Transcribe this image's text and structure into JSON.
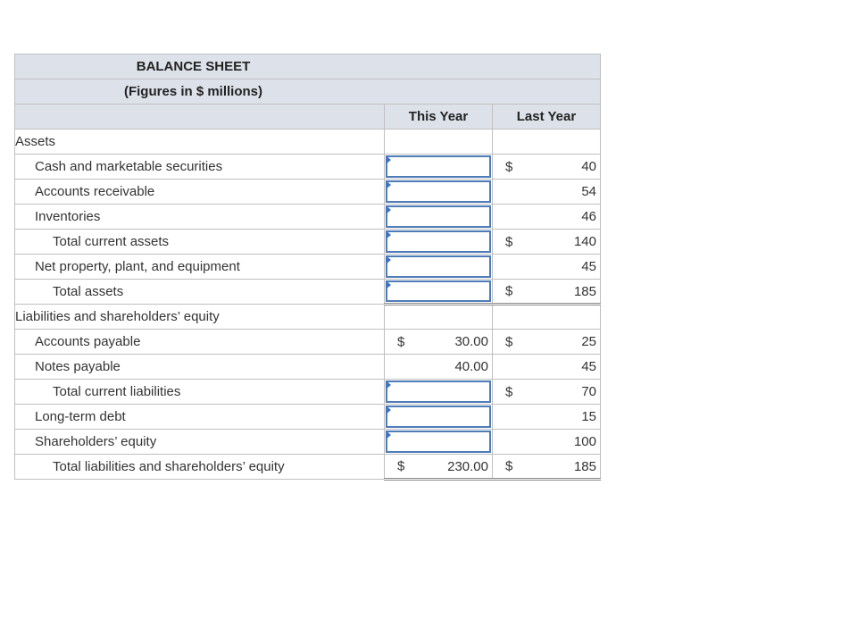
{
  "title": "BALANCE SHEET",
  "subtitle": "(Figures in $ millions)",
  "columns": {
    "this_year": "This Year",
    "last_year": "Last Year"
  },
  "currency_symbol": "$",
  "sections": {
    "assets": "Assets",
    "liabilities": "Liabilities and shareholders’ equity"
  },
  "rows": [
    {
      "label": "Cash and marketable securities",
      "this_year": "",
      "this_year_input": true,
      "last_year_dollar": true,
      "last_year": "40"
    },
    {
      "label": "Accounts receivable",
      "this_year": "",
      "this_year_input": true,
      "last_year_dollar": false,
      "last_year": "54"
    },
    {
      "label": "Inventories",
      "this_year": "",
      "this_year_input": true,
      "last_year_dollar": false,
      "last_year": "46"
    },
    {
      "label": "Total current assets",
      "this_year": "",
      "this_year_input": true,
      "last_year_dollar": true,
      "last_year": "140"
    },
    {
      "label": "Net property, plant, and equipment",
      "this_year": "",
      "this_year_input": true,
      "last_year_dollar": false,
      "last_year": "45"
    },
    {
      "label": "Total assets",
      "this_year": "",
      "this_year_input": true,
      "last_year_dollar": true,
      "last_year": "185"
    },
    {
      "label": "Accounts payable",
      "this_year_dollar": true,
      "this_year": "30.00",
      "this_year_input": false,
      "last_year_dollar": true,
      "last_year": "25"
    },
    {
      "label": "Notes payable",
      "this_year_dollar": false,
      "this_year": "40.00",
      "this_year_input": false,
      "last_year_dollar": false,
      "last_year": "45"
    },
    {
      "label": "Total current liabilities",
      "this_year": "",
      "this_year_input": true,
      "last_year_dollar": true,
      "last_year": "70"
    },
    {
      "label": "Long-term debt",
      "this_year": "",
      "this_year_input": true,
      "last_year_dollar": false,
      "last_year": "15"
    },
    {
      "label": "Shareholders’ equity",
      "this_year": "",
      "this_year_input": true,
      "last_year_dollar": false,
      "last_year": "100"
    },
    {
      "label": "Total liabilities and shareholders’ equity",
      "this_year_dollar": true,
      "this_year": "230.00",
      "this_year_input": false,
      "last_year_dollar": true,
      "last_year": "185"
    }
  ],
  "colors": {
    "header_bg": "#dde2ea",
    "input_border": "#4d7cb8",
    "input_flag": "#3f74c4"
  }
}
